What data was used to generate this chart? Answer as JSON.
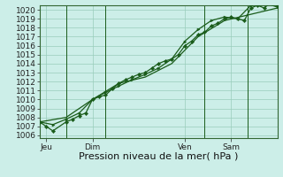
{
  "background_color": "#cceee8",
  "plot_bg_color": "#cceee8",
  "grid_color": "#99ccbb",
  "line_color": "#1a5c1a",
  "ylim": [
    1006,
    1020.5
  ],
  "yticks": [
    1006,
    1007,
    1008,
    1009,
    1010,
    1011,
    1012,
    1013,
    1014,
    1015,
    1016,
    1017,
    1018,
    1019,
    1020
  ],
  "xlabel": "Pression niveau de la mer( hPa )",
  "xlabel_fontsize": 8,
  "tick_fontsize": 6.5,
  "xtick_labels": [
    "Jeu",
    "Dim",
    "Ven",
    "Sam"
  ],
  "xtick_positions": [
    2,
    16,
    44,
    58
  ],
  "vline_positions": [
    8,
    20,
    50,
    63
  ],
  "xlim": [
    0,
    72
  ],
  "series1_x": [
    0,
    2,
    4,
    8,
    10,
    12,
    14,
    16,
    18,
    20,
    22,
    24,
    26,
    28,
    30,
    32,
    34,
    36,
    38,
    40,
    42,
    44,
    46,
    48,
    50,
    52,
    54,
    56,
    58,
    60,
    62,
    64,
    66,
    68,
    70,
    72
  ],
  "series1_y": [
    1007.5,
    1007.0,
    1006.5,
    1007.5,
    1007.8,
    1008.2,
    1008.5,
    1010.0,
    1010.3,
    1010.5,
    1011.2,
    1011.8,
    1012.2,
    1012.5,
    1012.8,
    1013.0,
    1013.5,
    1014.0,
    1014.3,
    1014.5,
    1015.0,
    1016.0,
    1016.5,
    1017.2,
    1017.5,
    1018.2,
    1018.5,
    1019.0,
    1019.2,
    1019.0,
    1018.8,
    1020.2,
    1020.5,
    1020.2,
    1020.8,
    1020.5
  ],
  "series1_markers": true,
  "series2_x": [
    0,
    4,
    8,
    12,
    16,
    20,
    24,
    28,
    32,
    36,
    40,
    44,
    48,
    52,
    56,
    60,
    64,
    68,
    72
  ],
  "series2_y": [
    1007.5,
    1007.2,
    1007.8,
    1008.5,
    1010.0,
    1010.8,
    1011.5,
    1012.2,
    1012.8,
    1013.5,
    1014.5,
    1016.5,
    1017.8,
    1018.8,
    1019.2,
    1019.0,
    1020.5,
    1020.8,
    1020.3
  ],
  "series2_markers": true,
  "series3_x": [
    0,
    8,
    16,
    24,
    32,
    40,
    48,
    56,
    64,
    72
  ],
  "series3_y": [
    1007.5,
    1008.0,
    1010.0,
    1011.8,
    1012.5,
    1014.0,
    1017.0,
    1018.8,
    1019.5,
    1020.2
  ],
  "series3_markers": false
}
